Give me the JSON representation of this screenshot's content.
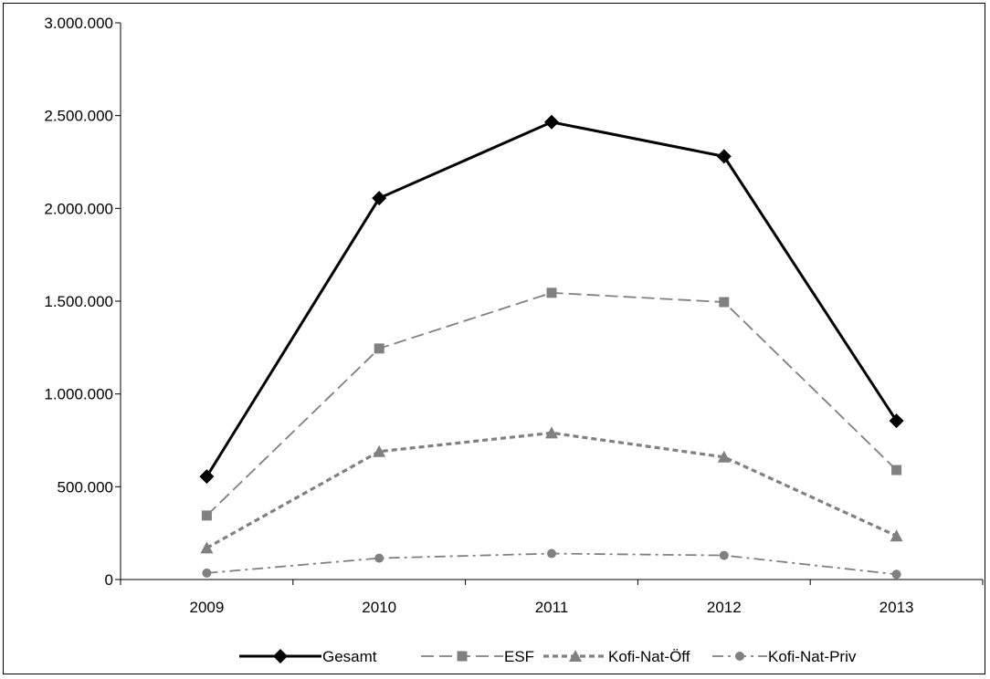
{
  "chart_data": {
    "type": "line",
    "title": "",
    "xlabel": "",
    "ylabel": "",
    "categories": [
      "2009",
      "2010",
      "2011",
      "2012",
      "2013"
    ],
    "ylim": [
      0,
      3000000
    ],
    "yticks": [
      0,
      500000,
      1000000,
      1500000,
      2000000,
      2500000,
      3000000
    ],
    "ytick_labels": [
      "0",
      "500.000",
      "1.000.000",
      "1.500.000",
      "2.000.000",
      "2.500.000",
      "3.000.000"
    ],
    "grid": false,
    "legend_position": "bottom",
    "series": [
      {
        "name": "Gesamt",
        "values": [
          555000,
          2055000,
          2465000,
          2280000,
          855000
        ],
        "color": "#000000",
        "marker": "diamond",
        "dash": "solid"
      },
      {
        "name": "ESF",
        "values": [
          345000,
          1245000,
          1545000,
          1495000,
          590000
        ],
        "color": "#808080",
        "marker": "square",
        "dash": "long-dash"
      },
      {
        "name": "Kofi-Nat-Öff",
        "values": [
          170000,
          690000,
          790000,
          660000,
          235000
        ],
        "color": "#808080",
        "marker": "triangle",
        "dash": "short-dash"
      },
      {
        "name": "Kofi-Nat-Priv",
        "values": [
          35000,
          115000,
          140000,
          130000,
          28000
        ],
        "color": "#808080",
        "marker": "circle",
        "dash": "dash-dot"
      }
    ]
  }
}
